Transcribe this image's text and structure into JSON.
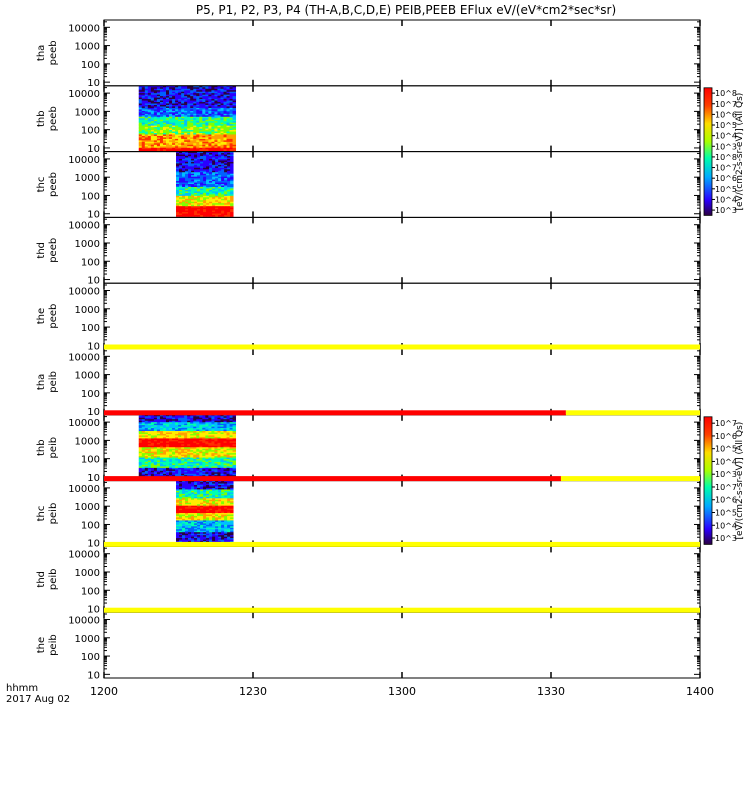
{
  "chart_data": {
    "type": "heatmap",
    "title": "P5, P1, P2, P3, P4 (TH-A,B,C,D,E) PEIB,PEEB EFlux eV/(eV*cm2*sec*sr)",
    "x": {
      "ticks": [
        "1200",
        "1230",
        "1300",
        "1330",
        "1400"
      ],
      "tick_minutes": [
        0,
        30,
        60,
        90,
        120
      ],
      "range_minutes": [
        0,
        120
      ],
      "corner_label_1": "hhmm",
      "corner_label_2": "2017 Aug 02"
    },
    "y_ticks": [
      "10000",
      "1000",
      "100",
      "10"
    ],
    "y_tick_log10": [
      4,
      3,
      2,
      1
    ],
    "y_range_log10": [
      0.8,
      4.4
    ],
    "y_scale": "log",
    "panels": [
      {
        "label1": "tha",
        "label2": "peeb",
        "data": []
      },
      {
        "label1": "thb",
        "label2": "peeb",
        "data": [
          {
            "start": 7,
            "end": 26.5,
            "kind": "electron_b"
          }
        ]
      },
      {
        "label1": "thc",
        "label2": "peeb",
        "data": [
          {
            "start": 14.5,
            "end": 26,
            "kind": "electron_c"
          }
        ]
      },
      {
        "label1": "thd",
        "label2": "peeb",
        "data": []
      },
      {
        "label1": "the",
        "label2": "peeb",
        "data": []
      },
      {
        "label1": "tha",
        "label2": "peib",
        "data": []
      },
      {
        "label1": "thb",
        "label2": "peib",
        "data": [
          {
            "start": 7,
            "end": 26.5,
            "kind": "ion_b"
          }
        ]
      },
      {
        "label1": "thc",
        "label2": "peib",
        "data": [
          {
            "start": 14.5,
            "end": 26,
            "kind": "ion_c"
          }
        ]
      },
      {
        "label1": "thd",
        "label2": "peib",
        "data": []
      },
      {
        "label1": "the",
        "label2": "peib",
        "data": []
      }
    ],
    "status_bars": [
      {
        "after_panel": 4,
        "segments": [
          {
            "start": 0,
            "end": 120,
            "color": "#ffff00"
          }
        ]
      },
      {
        "after_panel": 5,
        "segments": [
          {
            "start": 0,
            "end": 93,
            "color": "#ff0000"
          },
          {
            "start": 93,
            "end": 120,
            "color": "#ffff00"
          }
        ]
      },
      {
        "after_panel": 6,
        "segments": [
          {
            "start": 0,
            "end": 92,
            "color": "#ff0000"
          },
          {
            "start": 92,
            "end": 120,
            "color": "#ffff00"
          }
        ]
      },
      {
        "after_panel": 7,
        "segments": [
          {
            "start": 0,
            "end": 120,
            "color": "#ffff00"
          }
        ]
      },
      {
        "after_panel": 8,
        "segments": [
          {
            "start": 0,
            "end": 120,
            "color": "#ffff00"
          }
        ]
      }
    ],
    "colorbars": [
      {
        "panels": [
          1,
          2
        ],
        "ticks": [
          "10^8",
          "10^7",
          "10^6",
          "10^5",
          "10^4",
          "10^3",
          "10^8",
          "10^7",
          "10^6",
          "10^5",
          "10^4",
          "10^3"
        ],
        "label": "[eV/(cm2-s-sr-eV)] (All Qs)"
      },
      {
        "panels": [
          6,
          7
        ],
        "ticks": [
          "10^7",
          "10^6",
          "10^5",
          "10^4",
          "10^3",
          "10^7",
          "10^6",
          "10^5",
          "10^4",
          "10^3"
        ],
        "label": "[eV/(cm2-s-sr-eV)] (All Qs)"
      }
    ]
  }
}
